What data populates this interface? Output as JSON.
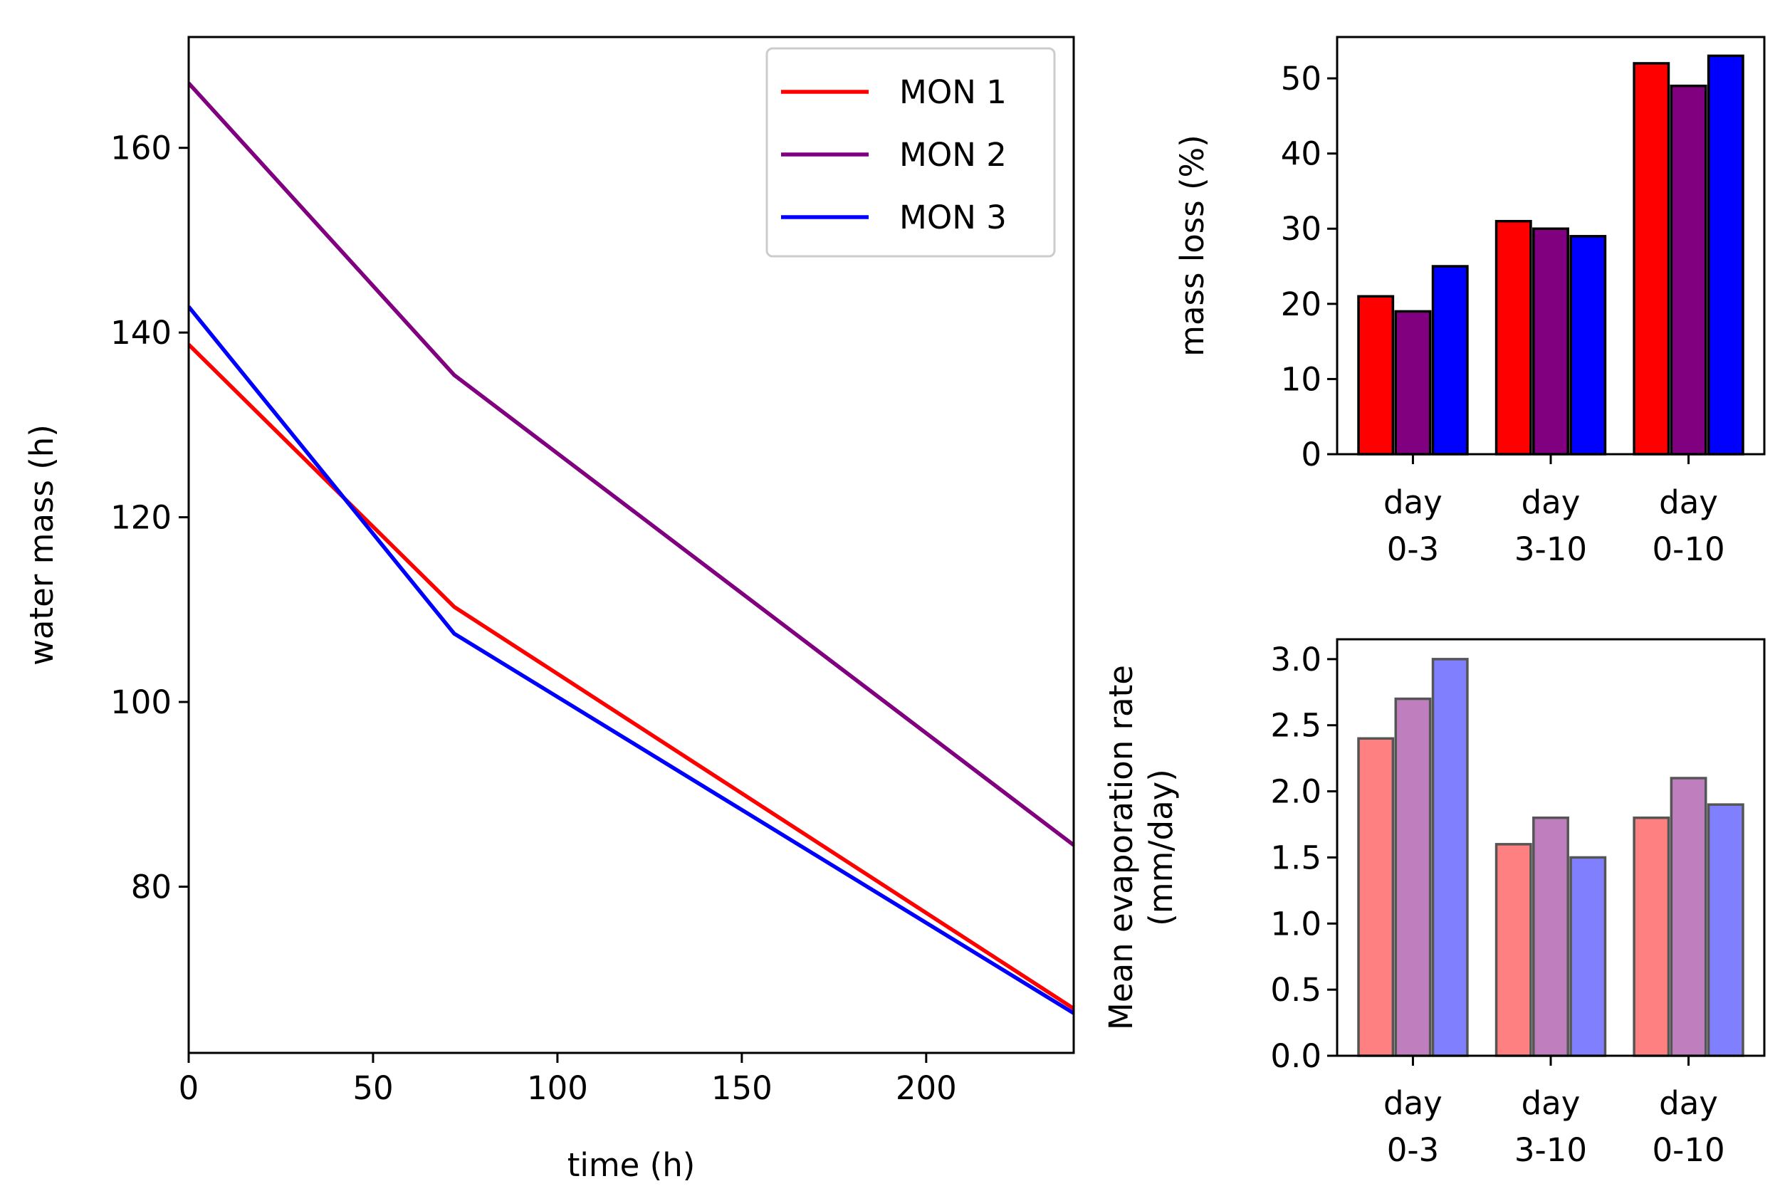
{
  "chart_data": [
    {
      "type": "line",
      "xlabel": "time (h)",
      "ylabel": "water mass (h)",
      "xlim": [
        0,
        240
      ],
      "ylim": [
        62,
        172
      ],
      "xticks": [
        0,
        50,
        100,
        150,
        200
      ],
      "yticks": [
        80,
        100,
        120,
        140,
        160
      ],
      "grid": false,
      "legend": "top-right",
      "series": [
        {
          "name": "MON 1",
          "color": "#ff0000",
          "x": [
            0,
            72,
            240
          ],
          "y": [
            138.7,
            110.3,
            66.8
          ]
        },
        {
          "name": "MON 2",
          "color": "#800080",
          "x": [
            0,
            72,
            240
          ],
          "y": [
            167.0,
            135.4,
            84.5
          ]
        },
        {
          "name": "MON 3",
          "color": "#0000ff",
          "x": [
            0,
            72,
            240
          ],
          "y": [
            142.8,
            107.4,
            66.3
          ]
        }
      ]
    },
    {
      "type": "bar",
      "xlabel": "",
      "ylabel": "mass loss (%)",
      "ylim": [
        0,
        55.5
      ],
      "yticks": [
        0,
        10,
        20,
        30,
        40,
        50
      ],
      "categories": [
        "day\n0-3",
        "day\n3-10",
        "day\n0-10"
      ],
      "series": [
        {
          "name": "MON 1",
          "color": "#ff0000",
          "values": [
            21,
            31,
            52
          ]
        },
        {
          "name": "MON 2",
          "color": "#800080",
          "values": [
            19,
            30,
            49
          ]
        },
        {
          "name": "MON 3",
          "color": "#0000ff",
          "values": [
            25,
            29,
            53
          ]
        }
      ]
    },
    {
      "type": "bar",
      "xlabel": "",
      "ylabel": "Mean evaporation rate\n(mm/day)",
      "ylim": [
        0,
        3.15
      ],
      "yticks": [
        0.0,
        0.5,
        1.0,
        1.5,
        2.0,
        2.5,
        3.0
      ],
      "categories": [
        "day\n0-3",
        "day\n3-10",
        "day\n0-10"
      ],
      "series": [
        {
          "name": "MON 1",
          "color": "#ff8080",
          "values": [
            2.4,
            1.6,
            1.8
          ]
        },
        {
          "name": "MON 2",
          "color": "#bf7fbf",
          "values": [
            2.7,
            1.8,
            2.1
          ]
        },
        {
          "name": "MON 3",
          "color": "#8080ff",
          "values": [
            3.0,
            1.5,
            1.9
          ]
        }
      ]
    }
  ]
}
